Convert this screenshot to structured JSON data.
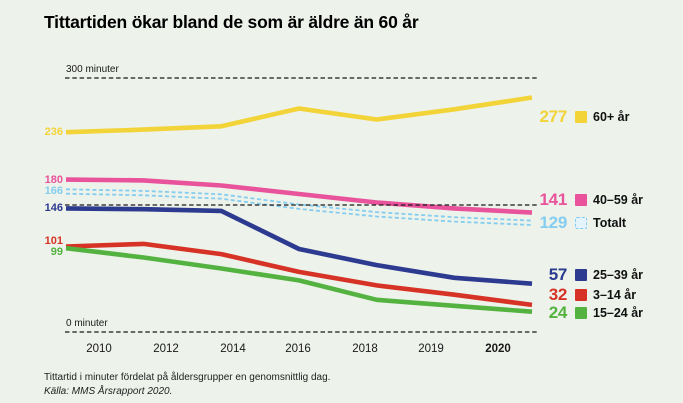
{
  "title": "Tittartiden ökar bland de som är äldre än 60 år",
  "footer": {
    "line1": "Tittartid i minuter fördelat på åldersgrupper en genomsnittlig dag.",
    "line2": "Källa: MMS Årsrapport 2020."
  },
  "colors": {
    "background": "#edf2ea",
    "text": "#111111",
    "gridline": "#1a1a1a"
  },
  "chart_data": {
    "type": "line",
    "x_labels": [
      "2010",
      "2012",
      "2014",
      "2016",
      "2018",
      "2019",
      "2020"
    ],
    "ylim": [
      0,
      300
    ],
    "grid": "dashed horizontal reference lines",
    "legend_position": "right",
    "gridlines": [
      {
        "value": 300,
        "label": "300 minuter"
      },
      {
        "value": 150,
        "label": ""
      },
      {
        "value": 0,
        "label": "0 minuter"
      }
    ],
    "series": [
      {
        "name": "60+ år",
        "color": "#f2d338",
        "style": "solid",
        "values": [
          236,
          239,
          243,
          264,
          251,
          263,
          277
        ],
        "start_label": "236",
        "end_label": "277"
      },
      {
        "name": "40–59 år",
        "color": "#e8539c",
        "style": "solid",
        "values": [
          180,
          179,
          173,
          163,
          153,
          146,
          141
        ],
        "start_label": "180",
        "end_label": "141"
      },
      {
        "name": "Totalt",
        "color": "#85cdf0",
        "style": "dashed-double",
        "values": [
          166,
          164,
          160,
          148,
          139,
          133,
          129
        ],
        "start_label": "166",
        "end_label": "129"
      },
      {
        "name": "25–39 år",
        "color": "#2c3a90",
        "style": "solid",
        "values": [
          146,
          145,
          143,
          98,
          79,
          64,
          57
        ],
        "start_label": "146",
        "end_label": "57"
      },
      {
        "name": "3–14 år",
        "color": "#d63326",
        "style": "solid",
        "values": [
          101,
          104,
          92,
          71,
          55,
          44,
          32
        ],
        "start_label": "101",
        "end_label": "32"
      },
      {
        "name": "15–24 år",
        "color": "#54b340",
        "style": "solid",
        "values": [
          99,
          88,
          75,
          61,
          38,
          31,
          24
        ],
        "start_label": "99",
        "end_label": "24"
      }
    ]
  }
}
